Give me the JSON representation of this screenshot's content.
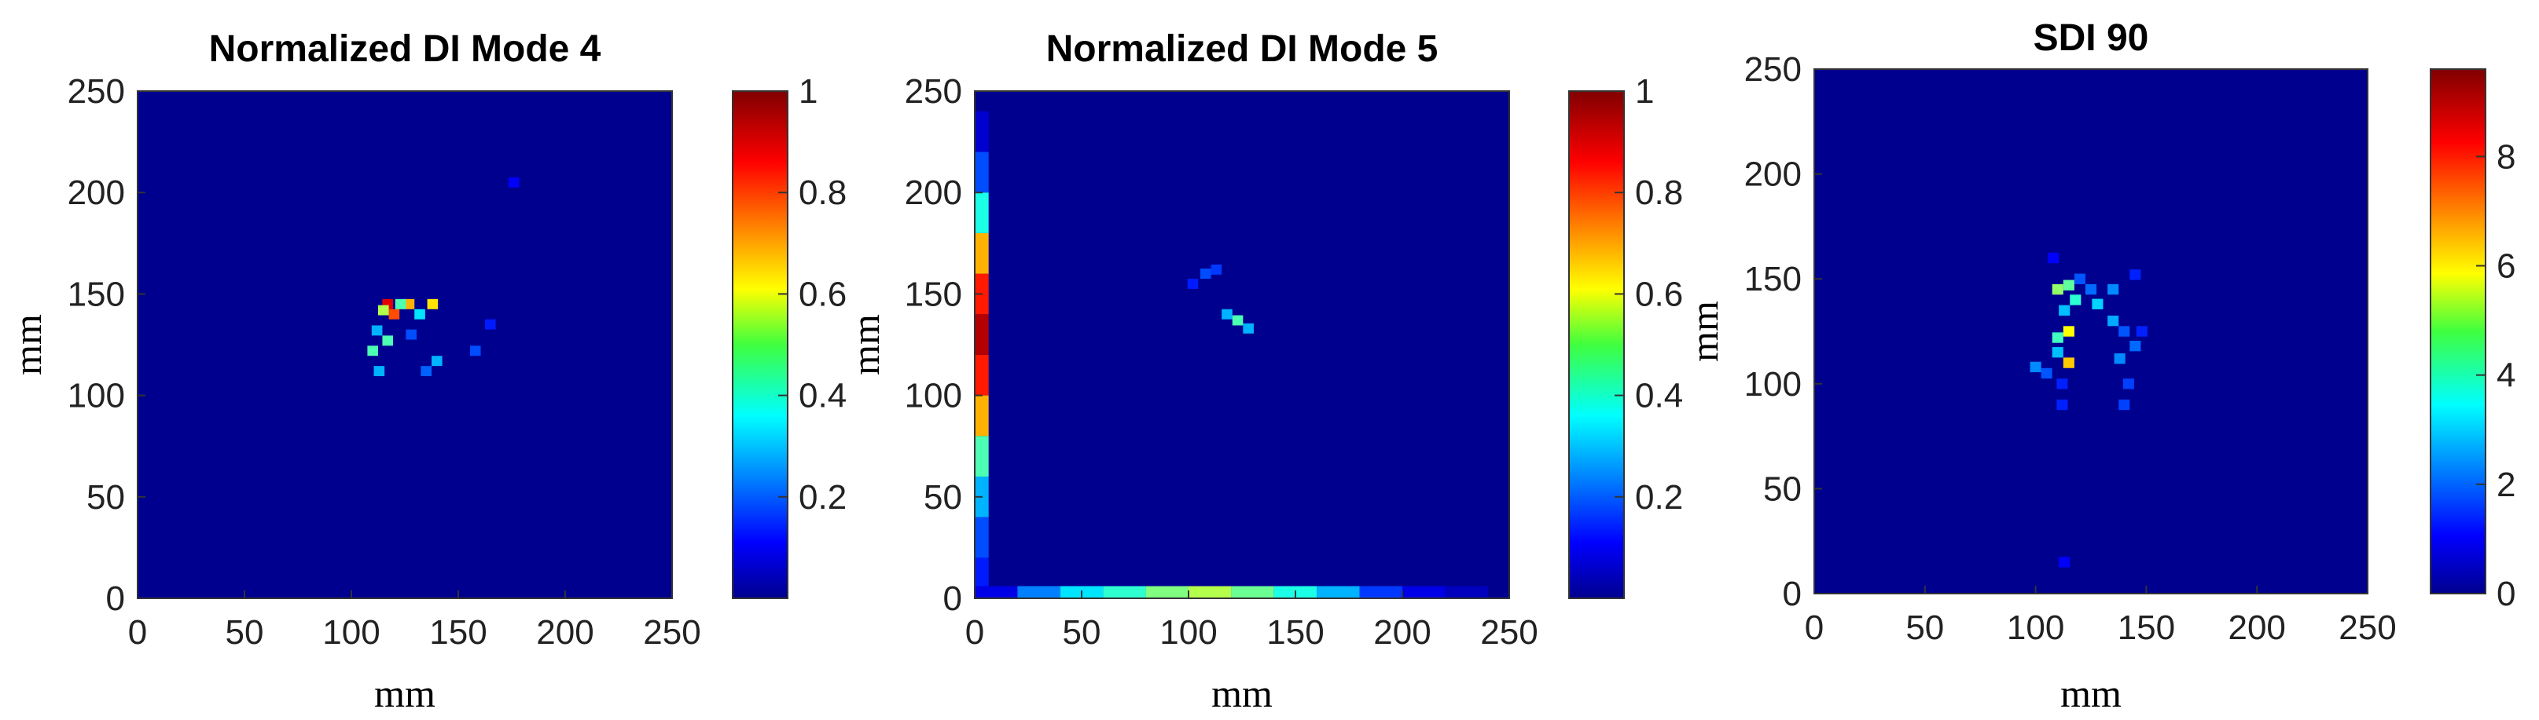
{
  "chart_data": [
    {
      "type": "heatmap",
      "title": "Normalized DI Mode 4",
      "xlabel": "mm",
      "ylabel": "mm",
      "xlim": [
        0,
        250
      ],
      "ylim": [
        0,
        250
      ],
      "xticks": [
        "0",
        "50",
        "100",
        "150",
        "200",
        "250"
      ],
      "yticks": [
        "0",
        "50",
        "100",
        "150",
        "200",
        "250"
      ],
      "colorbar": {
        "colormap": "jet",
        "range": [
          0,
          1
        ],
        "ticks": [
          "0.2",
          "0.4",
          "0.6",
          "0.8",
          "1"
        ]
      },
      "background_value": 0.05,
      "hotspots": [
        {
          "x": 117,
          "y": 145,
          "value": 0.9
        },
        {
          "x": 120,
          "y": 140,
          "value": 0.8
        },
        {
          "x": 115,
          "y": 142,
          "value": 0.55
        },
        {
          "x": 127,
          "y": 145,
          "value": 0.7
        },
        {
          "x": 123,
          "y": 145,
          "value": 0.45
        },
        {
          "x": 138,
          "y": 145,
          "value": 0.65
        },
        {
          "x": 132,
          "y": 140,
          "value": 0.35
        },
        {
          "x": 112,
          "y": 132,
          "value": 0.3
        },
        {
          "x": 117,
          "y": 127,
          "value": 0.45
        },
        {
          "x": 110,
          "y": 122,
          "value": 0.45
        },
        {
          "x": 113,
          "y": 112,
          "value": 0.3
        },
        {
          "x": 140,
          "y": 117,
          "value": 0.3
        },
        {
          "x": 135,
          "y": 112,
          "value": 0.22
        },
        {
          "x": 128,
          "y": 130,
          "value": 0.2
        },
        {
          "x": 158,
          "y": 122,
          "value": 0.2
        },
        {
          "x": 165,
          "y": 135,
          "value": 0.15
        },
        {
          "x": 176,
          "y": 205,
          "value": 0.12
        }
      ]
    },
    {
      "type": "heatmap",
      "title": "Normalized DI Mode 5",
      "xlabel": "mm",
      "ylabel": "mm",
      "xlim": [
        0,
        250
      ],
      "ylim": [
        0,
        250
      ],
      "xticks": [
        "0",
        "50",
        "100",
        "150",
        "200",
        "250"
      ],
      "yticks": [
        "0",
        "50",
        "100",
        "150",
        "200",
        "250"
      ],
      "colorbar": {
        "colormap": "jet",
        "range": [
          0,
          1
        ],
        "ticks": [
          "0.2",
          "0.4",
          "0.6",
          "0.8",
          "1"
        ]
      },
      "background_value": 0.05,
      "left_edge_profile": [
        {
          "y": 10,
          "value": 0.15
        },
        {
          "y": 30,
          "value": 0.2
        },
        {
          "y": 50,
          "value": 0.3
        },
        {
          "y": 70,
          "value": 0.45
        },
        {
          "y": 90,
          "value": 0.7
        },
        {
          "y": 110,
          "value": 0.85
        },
        {
          "y": 130,
          "value": 0.95
        },
        {
          "y": 150,
          "value": 0.85
        },
        {
          "y": 170,
          "value": 0.7
        },
        {
          "y": 190,
          "value": 0.4
        },
        {
          "y": 210,
          "value": 0.2
        },
        {
          "y": 230,
          "value": 0.08
        }
      ],
      "bottom_edge_profile": [
        {
          "x": 10,
          "value": 0.1
        },
        {
          "x": 30,
          "value": 0.25
        },
        {
          "x": 50,
          "value": 0.35
        },
        {
          "x": 70,
          "value": 0.42
        },
        {
          "x": 90,
          "value": 0.5
        },
        {
          "x": 110,
          "value": 0.55
        },
        {
          "x": 130,
          "value": 0.48
        },
        {
          "x": 150,
          "value": 0.4
        },
        {
          "x": 170,
          "value": 0.3
        },
        {
          "x": 190,
          "value": 0.18
        },
        {
          "x": 210,
          "value": 0.1
        },
        {
          "x": 230,
          "value": 0.06
        }
      ],
      "hotspots": [
        {
          "x": 118,
          "y": 140,
          "value": 0.3
        },
        {
          "x": 123,
          "y": 137,
          "value": 0.45
        },
        {
          "x": 128,
          "y": 133,
          "value": 0.3
        },
        {
          "x": 108,
          "y": 160,
          "value": 0.2
        },
        {
          "x": 102,
          "y": 155,
          "value": 0.15
        },
        {
          "x": 113,
          "y": 162,
          "value": 0.18
        }
      ]
    },
    {
      "type": "heatmap",
      "title": "SDI 90",
      "xlabel": "mm",
      "ylabel": "mm",
      "xlim": [
        0,
        250
      ],
      "ylim": [
        0,
        250
      ],
      "xticks": [
        "0",
        "50",
        "100",
        "150",
        "200",
        "250"
      ],
      "yticks": [
        "0",
        "50",
        "100",
        "150",
        "200",
        "250"
      ],
      "colorbar": {
        "colormap": "jet",
        "range": [
          0,
          9.6
        ],
        "ticks": [
          "0",
          "2",
          "4",
          "6",
          "8"
        ]
      },
      "background_value": 0.2,
      "hotspots": [
        {
          "x": 110,
          "y": 145,
          "value": 5.0
        },
        {
          "x": 115,
          "y": 147,
          "value": 4.5
        },
        {
          "x": 118,
          "y": 140,
          "value": 4.0
        },
        {
          "x": 113,
          "y": 135,
          "value": 3.0
        },
        {
          "x": 115,
          "y": 125,
          "value": 6.0
        },
        {
          "x": 110,
          "y": 122,
          "value": 4.2
        },
        {
          "x": 115,
          "y": 110,
          "value": 6.5
        },
        {
          "x": 110,
          "y": 115,
          "value": 3.0
        },
        {
          "x": 100,
          "y": 108,
          "value": 2.5
        },
        {
          "x": 105,
          "y": 105,
          "value": 2.0
        },
        {
          "x": 125,
          "y": 145,
          "value": 2.2
        },
        {
          "x": 128,
          "y": 138,
          "value": 3.2
        },
        {
          "x": 135,
          "y": 145,
          "value": 2.5
        },
        {
          "x": 135,
          "y": 130,
          "value": 2.8
        },
        {
          "x": 140,
          "y": 125,
          "value": 2.0
        },
        {
          "x": 145,
          "y": 118,
          "value": 2.2
        },
        {
          "x": 138,
          "y": 112,
          "value": 2.5
        },
        {
          "x": 142,
          "y": 100,
          "value": 1.8
        },
        {
          "x": 140,
          "y": 90,
          "value": 1.8
        },
        {
          "x": 148,
          "y": 125,
          "value": 1.5
        },
        {
          "x": 112,
          "y": 100,
          "value": 1.5
        },
        {
          "x": 112,
          "y": 90,
          "value": 1.5
        },
        {
          "x": 145,
          "y": 152,
          "value": 1.5
        },
        {
          "x": 113,
          "y": 15,
          "value": 1.2
        },
        {
          "x": 108,
          "y": 160,
          "value": 1.2
        },
        {
          "x": 120,
          "y": 150,
          "value": 2.0
        }
      ]
    }
  ]
}
